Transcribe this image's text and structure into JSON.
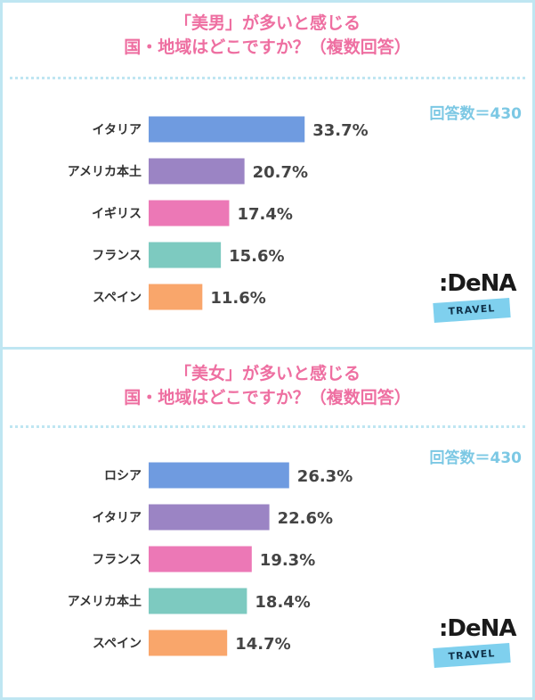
{
  "chart_data": [
    {
      "type": "bar",
      "title_line1": "「美男」が多いと感じる",
      "title_line2": "国・地域はどこですか？（複数回答）",
      "respondents": "回答数＝430",
      "categories": [
        "イタリア",
        "アメリカ本土",
        "イギリス",
        "フランス",
        "スペイン"
      ],
      "values": [
        33.7,
        20.7,
        17.4,
        15.6,
        11.6
      ],
      "value_labels": [
        "33.7%",
        "20.7%",
        "17.4%",
        "15.6%",
        "11.6%"
      ],
      "colors": [
        "#6f9be0",
        "#9b84c4",
        "#ec78b6",
        "#7dcac0",
        "#f9a66b"
      ],
      "unit": "%",
      "orientation": "horizontal"
    },
    {
      "type": "bar",
      "title_line1": "「美女」が多いと感じる",
      "title_line2": "国・地域はどこですか？（複数回答）",
      "respondents": "回答数＝430",
      "categories": [
        "ロシア",
        "イタリア",
        "フランス",
        "アメリカ本土",
        "スペイン"
      ],
      "values": [
        26.3,
        22.6,
        19.3,
        18.4,
        14.7
      ],
      "value_labels": [
        "26.3%",
        "22.6%",
        "19.3%",
        "18.4%",
        "14.7%"
      ],
      "colors": [
        "#6f9be0",
        "#9b84c4",
        "#ec78b6",
        "#7dcac0",
        "#f9a66b"
      ],
      "unit": "%",
      "orientation": "horizontal"
    }
  ],
  "logo": {
    "wordmark": ":DeNA",
    "band": "TRAVEL"
  }
}
